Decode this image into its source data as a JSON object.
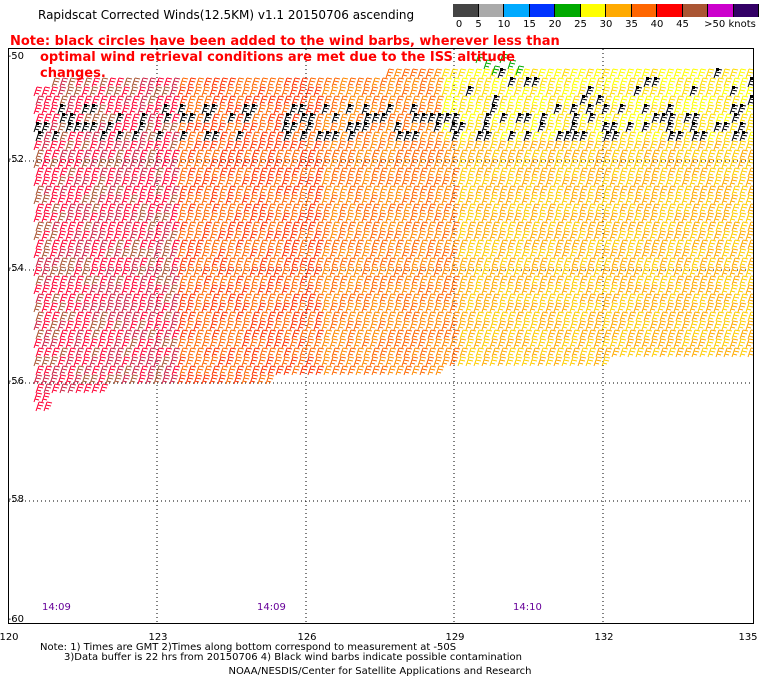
{
  "title": "Rapidscat Corrected Winds(12.5KM) v1.1 20150706 ascending",
  "note": {
    "line1": "Note: black circles have been added to the wind barbs, wherever less than",
    "line2": "optimal wind retrieval conditions are met due to the ISS altitude changes."
  },
  "color_scale": {
    "labels": [
      "0",
      "5",
      "10",
      "15",
      "20",
      "25",
      "30",
      "35",
      "40",
      "45",
      ">50 knots"
    ],
    "colors": [
      "#444444",
      "#aaaaaa",
      "#00aaff",
      "#0033ff",
      "#00aa00",
      "#ffff00",
      "#ffaa00",
      "#ff6600",
      "#ff0000",
      "#aa5533",
      "#cc00cc",
      "#330066"
    ]
  },
  "axes": {
    "lat_labels": [
      "-50",
      "-52",
      "-54",
      "-56",
      "-58",
      "-60"
    ],
    "lon_labels": [
      "120",
      "123",
      "126",
      "129",
      "132",
      "135"
    ]
  },
  "times": [
    "14:09",
    "14:09",
    "14:10"
  ],
  "footer": {
    "line1": "Note: 1) Times are GMT 2)Times along bottom correspond to measurement at -50S",
    "line2": "3)Data buffer is 22 hrs from 20150706 4) Black wind barbs indicate possible contamination",
    "credit": "NOAA/NESDIS/Center for Satellite Applications and Research"
  }
}
